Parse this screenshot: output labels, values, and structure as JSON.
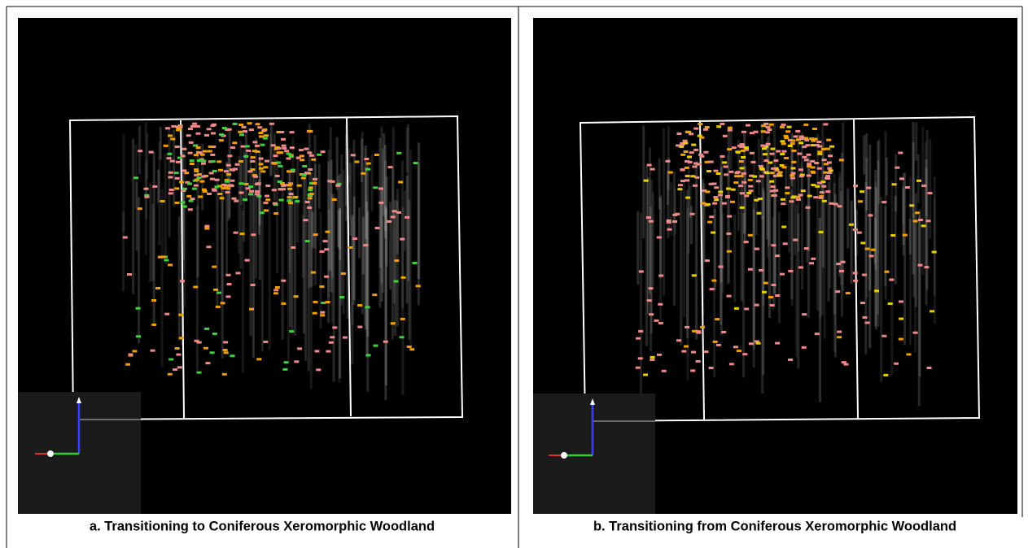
{
  "figure": {
    "panels": [
      {
        "caption": "a. Transitioning to Coniferous Xeromorphic Woodland"
      },
      {
        "caption": "b. Transitioning from Coniferous Xeromorphic Woodland"
      }
    ]
  }
}
